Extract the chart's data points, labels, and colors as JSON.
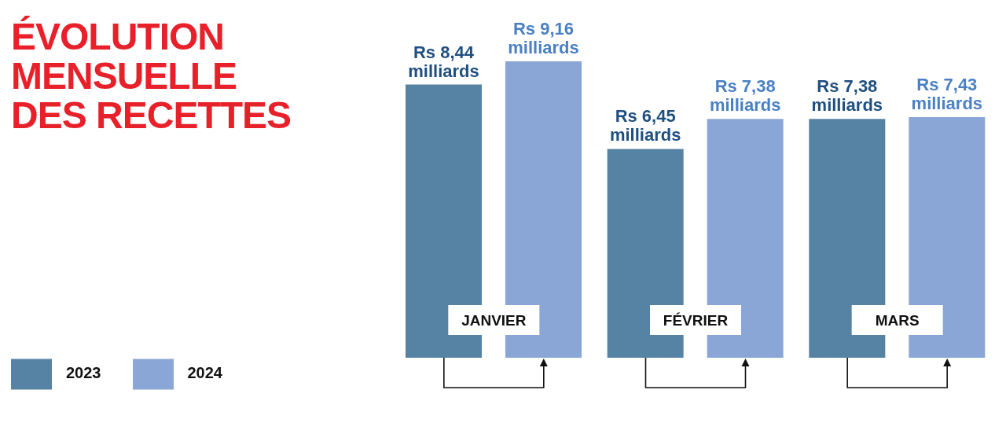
{
  "chart_data": {
    "type": "bar",
    "title": "ÉVOLUTION MENSUELLE DES RECETTES",
    "categories": [
      "JANVIER",
      "FÉVRIER",
      "MARS"
    ],
    "series": [
      {
        "name": "2023",
        "color": "#5682a3",
        "values": [
          8.44,
          6.45,
          7.38
        ],
        "value_labels": [
          "Rs 8,44 milliards",
          "Rs 6,45 milliards",
          "Rs 7,38 milliards"
        ]
      },
      {
        "name": "2024",
        "color": "#8aa6d6",
        "values": [
          9.16,
          7.38,
          7.43
        ],
        "value_labels": [
          "Rs 9,16 milliards",
          "Rs 7,38 milliards",
          "Rs 7,43 milliards"
        ]
      }
    ],
    "legend": "bottom left",
    "grid": false
  }
}
